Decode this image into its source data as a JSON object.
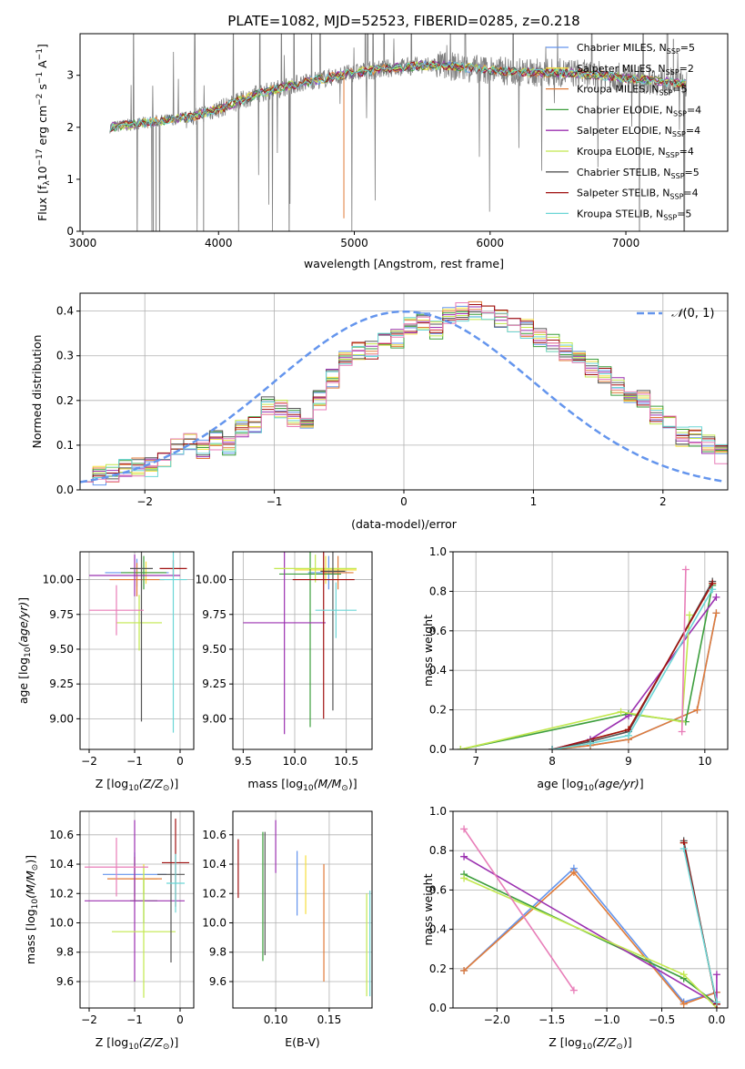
{
  "colors": [
    "#6495ED",
    "#F5DE3D",
    "#E07B39",
    "#3C9E3C",
    "#9B30B0",
    "#C2E84E",
    "#555555",
    "#A01010",
    "#6BD6D6"
  ],
  "chart_data": [
    {
      "id": "spectrum",
      "type": "line",
      "title": "PLATE=1082, MJD=52523, FIBERID=0285, z=0.218",
      "xlabel": "wavelength [Angstrom, rest frame]",
      "ylabel": "Flux [f_λ10^-17 erg cm^-2 s^-1 A^-1]",
      "xlim": [
        2980,
        7750
      ],
      "ylim": [
        0,
        3.8
      ],
      "xticks": [
        3000,
        4000,
        5000,
        6000,
        7000
      ],
      "yticks": [
        0,
        1,
        2,
        3
      ],
      "grid": false,
      "legend_position": "top-right",
      "data_wavelength_range": [
        3200,
        7450
      ],
      "model_flux_points": [
        [
          3200,
          2.0
        ],
        [
          3500,
          2.1
        ],
        [
          3800,
          2.2
        ],
        [
          4000,
          2.35
        ],
        [
          4300,
          2.65
        ],
        [
          4600,
          2.85
        ],
        [
          5000,
          3.05
        ],
        [
          5300,
          3.15
        ],
        [
          5600,
          3.2
        ],
        [
          6000,
          3.1
        ],
        [
          6300,
          3.05
        ],
        [
          6600,
          3.05
        ],
        [
          7000,
          2.95
        ],
        [
          7400,
          2.85
        ]
      ],
      "series": [
        {
          "label_main": "Chabrier MILES, N",
          "label_sub": "SSP",
          "label_end": "=5"
        },
        {
          "label_main": "Salpeter MILES, N",
          "label_sub": "SSP",
          "label_end": "=2"
        },
        {
          "label_main": "Kroupa MILES, N",
          "label_sub": "SSP",
          "label_end": "=5"
        },
        {
          "label_main": "Chabrier ELODIE, N",
          "label_sub": "SSP",
          "label_end": "=4"
        },
        {
          "label_main": "Salpeter ELODIE, N",
          "label_sub": "SSP",
          "label_end": "=4"
        },
        {
          "label_main": "Kroupa ELODIE, N",
          "label_sub": "SSP",
          "label_end": "=4"
        },
        {
          "label_main": "Chabrier STELIB, N",
          "label_sub": "SSP",
          "label_end": "=5"
        },
        {
          "label_main": "Salpeter STELIB, N",
          "label_sub": "SSP",
          "label_end": "=4"
        },
        {
          "label_main": "Kroupa STELIB, N",
          "label_sub": "SSP",
          "label_end": "=5"
        }
      ]
    },
    {
      "id": "residuals",
      "type": "bar",
      "xlabel": "(data-model)/error",
      "ylabel": "Normed distribution",
      "xlim": [
        -2.5,
        2.5
      ],
      "ylim": [
        0,
        0.44
      ],
      "xticks": [
        -2,
        -1,
        0,
        1,
        2
      ],
      "yticks": [
        0.0,
        0.1,
        0.2,
        0.3,
        0.4
      ],
      "grid": true,
      "legend": "N(0,1)",
      "legend_position": "top-right",
      "bin_width": 0.1,
      "bins_from": -2.5,
      "reference_curve": "normal",
      "reference_color": "#6495ED",
      "hist_values": [
        0.04,
        0.03,
        0.04,
        0.05,
        0.05,
        0.05,
        0.07,
        0.1,
        0.11,
        0.09,
        0.11,
        0.1,
        0.14,
        0.15,
        0.19,
        0.18,
        0.16,
        0.15,
        0.2,
        0.25,
        0.29,
        0.31,
        0.31,
        0.33,
        0.34,
        0.37,
        0.38,
        0.36,
        0.39,
        0.4,
        0.4,
        0.39,
        0.38,
        0.37,
        0.36,
        0.34,
        0.33,
        0.31,
        0.3,
        0.27,
        0.26,
        0.23,
        0.2,
        0.2,
        0.17,
        0.15,
        0.12,
        0.12,
        0.1,
        0.08
      ]
    },
    {
      "id": "age-vs-Z",
      "type": "errorbar",
      "xlabel": "Z [log10(Z/Z☉)]",
      "ylabel": "age [log10(age/yr)]",
      "xlim": [
        -2.2,
        0.3
      ],
      "ylim": [
        8.78,
        10.2
      ],
      "xticks": [
        -2,
        -1,
        0
      ],
      "yticks": [
        9.0,
        9.25,
        9.5,
        9.75,
        10.0
      ],
      "grid": true,
      "points": [
        {
          "x": -0.95,
          "xerr": 0.7,
          "y": 10.05,
          "yerr": 0.1
        },
        {
          "x": -0.75,
          "xerr": 0.4,
          "y": 10.05,
          "yerr": 0.08
        },
        {
          "x": -0.95,
          "xerr": 0.6,
          "y": 10.0,
          "yerr": 0.12
        },
        {
          "x": -0.8,
          "xerr": 0.5,
          "y": 10.05,
          "yerr": 0.12
        },
        {
          "x": -1.0,
          "xerr": 1.0,
          "y": 10.03,
          "yerr": 0.15
        },
        {
          "x": -0.9,
          "xerr": 0.5,
          "y": 9.69,
          "yerr": 0.2
        },
        {
          "x": -0.85,
          "xerr": 0.25,
          "y": 10.08,
          "yerr": 1.1
        },
        {
          "x": -0.15,
          "xerr": 0.3,
          "y": 10.08,
          "yerr": 0.06
        },
        {
          "x": -0.15,
          "xerr": 0.3,
          "y": 10.0,
          "yerr": 1.1
        },
        {
          "x": -1.4,
          "xerr": 0.6,
          "y": 9.78,
          "yerr": 0.18
        }
      ]
    },
    {
      "id": "age-vs-mass",
      "type": "errorbar",
      "xlabel": "mass [log10(M/M☉)]",
      "ylabel": "",
      "xlim": [
        9.4,
        10.75
      ],
      "ylim": [
        8.78,
        10.2
      ],
      "xticks": [
        9.5,
        10.0,
        10.5
      ],
      "yticks": [
        9.0,
        9.25,
        9.5,
        9.75,
        10.0
      ],
      "grid": true,
      "points": [
        {
          "x": 10.33,
          "xerr": 0.2,
          "y": 10.05,
          "yerr": 0.12
        },
        {
          "x": 10.3,
          "xerr": 0.3,
          "y": 10.07,
          "yerr": 0.1
        },
        {
          "x": 10.42,
          "xerr": 0.15,
          "y": 10.05,
          "yerr": 0.12
        },
        {
          "x": 10.15,
          "xerr": 0.3,
          "y": 10.04,
          "yerr": 1.1
        },
        {
          "x": 9.9,
          "xerr": 0.4,
          "y": 9.69,
          "yerr": 0.8
        },
        {
          "x": 10.2,
          "xerr": 0.4,
          "y": 10.08,
          "yerr": 0.1
        },
        {
          "x": 10.37,
          "xerr": 0.12,
          "y": 10.06,
          "yerr": 1.0
        },
        {
          "x": 10.28,
          "xerr": 0.3,
          "y": 10.0,
          "yerr": 1.0
        },
        {
          "x": 10.4,
          "xerr": 0.2,
          "y": 9.78,
          "yerr": 0.2
        }
      ]
    },
    {
      "id": "mass-weight-vs-age",
      "type": "line",
      "xlabel": "age [log10(age/yr)]",
      "ylabel": "mass weight",
      "xlim": [
        6.7,
        10.3
      ],
      "ylim": [
        0,
        1.0
      ],
      "xticks": [
        7,
        8,
        9,
        10
      ],
      "yticks": [
        0.0,
        0.2,
        0.4,
        0.6,
        0.8,
        1.0
      ],
      "grid": true,
      "series": [
        {
          "x": [
            8.0,
            8.5,
            9.0,
            9.9,
            10.15
          ],
          "y": [
            0.0,
            0.02,
            0.05,
            0.2,
            0.69
          ]
        },
        {
          "x": [
            8.0,
            9.0,
            10.1
          ],
          "y": [
            0.0,
            0.1,
            0.84
          ]
        },
        {
          "x": [
            8.0,
            8.5,
            9.0,
            9.9,
            10.15
          ],
          "y": [
            0.0,
            0.02,
            0.05,
            0.2,
            0.69
          ]
        },
        {
          "x": [
            6.8,
            9.0,
            9.75,
            10.1
          ],
          "y": [
            0.0,
            0.18,
            0.14,
            0.83
          ]
        },
        {
          "x": [
            8.0,
            8.5,
            9.0,
            10.15
          ],
          "y": [
            0.0,
            0.05,
            0.17,
            0.77
          ]
        },
        {
          "x": [
            6.8,
            8.9,
            9.7,
            9.8
          ],
          "y": [
            0.0,
            0.19,
            0.14,
            0.68
          ]
        },
        {
          "x": [
            8.0,
            8.5,
            9.0,
            10.1
          ],
          "y": [
            0.0,
            0.04,
            0.09,
            0.85
          ]
        },
        {
          "x": [
            8.0,
            9.0,
            10.1
          ],
          "y": [
            0.0,
            0.1,
            0.84
          ]
        },
        {
          "x": [
            8.0,
            8.5,
            9.0,
            10.1
          ],
          "y": [
            0.0,
            0.03,
            0.07,
            0.81
          ]
        },
        {
          "x": [
            9.7,
            9.75
          ],
          "y": [
            0.09,
            0.91
          ],
          "color": "#E87DB8"
        }
      ]
    },
    {
      "id": "mass-vs-Z",
      "type": "errorbar",
      "xlabel": "Z [log10(Z/Z☉)]",
      "ylabel": "mass [log10(M/M☉)]",
      "xlim": [
        -2.2,
        0.3
      ],
      "ylim": [
        9.42,
        10.76
      ],
      "xticks": [
        -2,
        -1,
        0
      ],
      "yticks": [
        9.6,
        9.8,
        10.0,
        10.2,
        10.4,
        10.6
      ],
      "grid": true,
      "points": [
        {
          "x": -1.0,
          "xerr": 0.7,
          "y": 10.33,
          "yerr": 0.15
        },
        {
          "x": -0.8,
          "xerr": 0.3,
          "y": 10.3,
          "yerr": 0.1
        },
        {
          "x": -1.0,
          "xerr": 0.6,
          "y": 10.3,
          "yerr": 0.15
        },
        {
          "x": -0.8,
          "xerr": 0.3,
          "y": 10.15,
          "yerr": 0.15
        },
        {
          "x": -1.0,
          "xerr": 1.1,
          "y": 10.15,
          "yerr": 0.55
        },
        {
          "x": -0.8,
          "xerr": 0.7,
          "y": 9.94,
          "yerr": 0.45
        },
        {
          "x": -0.2,
          "xerr": 0.3,
          "y": 10.33,
          "yerr": 0.6
        },
        {
          "x": -0.1,
          "xerr": 0.3,
          "y": 10.41,
          "yerr": 0.3
        },
        {
          "x": -0.1,
          "xerr": 0.2,
          "y": 10.27,
          "yerr": 0.2
        },
        {
          "x": -1.4,
          "xerr": 0.7,
          "y": 10.38,
          "yerr": 0.2
        }
      ]
    },
    {
      "id": "mass-vs-EBV",
      "type": "errorbar",
      "xlabel": "E(B-V)",
      "ylabel": "",
      "xlim": [
        0.06,
        0.19
      ],
      "ylim": [
        9.42,
        10.76
      ],
      "xticks": [
        0.1,
        0.15
      ],
      "yticks": [
        9.6,
        9.8,
        10.0,
        10.2,
        10.4,
        10.6
      ],
      "grid": true,
      "points": [
        {
          "x": 0.12,
          "y": 10.27,
          "yerr": 0.22
        },
        {
          "x": 0.128,
          "y": 10.26,
          "yerr": 0.2
        },
        {
          "x": 0.145,
          "y": 10.0,
          "yerr": 0.4
        },
        {
          "x": 0.088,
          "y": 10.18,
          "yerr": 0.44
        },
        {
          "x": 0.1,
          "y": 10.52,
          "yerr": 0.18
        },
        {
          "x": 0.185,
          "y": 9.85,
          "yerr": 0.35
        },
        {
          "x": 0.09,
          "y": 10.2,
          "yerr": 0.42
        },
        {
          "x": 0.065,
          "y": 10.37,
          "yerr": 0.2
        },
        {
          "x": 0.188,
          "y": 9.86,
          "yerr": 0.36
        }
      ]
    },
    {
      "id": "mass-weight-vs-Z",
      "type": "line",
      "xlabel": "Z [log10(Z/Z☉)]",
      "ylabel": "mass weight",
      "xlim": [
        -2.4,
        0.1
      ],
      "ylim": [
        0,
        1.0
      ],
      "xticks": [
        -2.0,
        -1.5,
        -1.0,
        -0.5,
        0.0
      ],
      "yticks": [
        0.0,
        0.2,
        0.4,
        0.6,
        0.8,
        1.0
      ],
      "grid": true,
      "series": [
        {
          "x": [
            -2.3,
            -1.3,
            -0.3,
            0.0
          ],
          "y": [
            0.19,
            0.71,
            0.03,
            0.08
          ]
        },
        {
          "x": [
            -0.3,
            0.0
          ],
          "y": [
            0.84,
            0.02
          ]
        },
        {
          "x": [
            -2.3,
            -1.3,
            -0.3,
            0.0
          ],
          "y": [
            0.19,
            0.69,
            0.02,
            0.08
          ]
        },
        {
          "x": [
            -2.3,
            -0.3,
            0.0
          ],
          "y": [
            0.68,
            0.15,
            0.02
          ]
        },
        {
          "x": [
            -2.3,
            0.0,
            0.0
          ],
          "y": [
            0.77,
            0.02,
            0.17
          ]
        },
        {
          "x": [
            -2.3,
            -0.3,
            0.0
          ],
          "y": [
            0.66,
            0.17,
            0.0
          ]
        },
        {
          "x": [
            -0.3,
            0.0
          ],
          "y": [
            0.85,
            0.02
          ]
        },
        {
          "x": [
            -0.3,
            0.0
          ],
          "y": [
            0.84,
            0.02
          ]
        },
        {
          "x": [
            -0.3,
            0.0
          ],
          "y": [
            0.81,
            0.03
          ]
        },
        {
          "x": [
            -2.3,
            -1.3
          ],
          "y": [
            0.91,
            0.09
          ],
          "color": "#E87DB8"
        }
      ]
    }
  ]
}
